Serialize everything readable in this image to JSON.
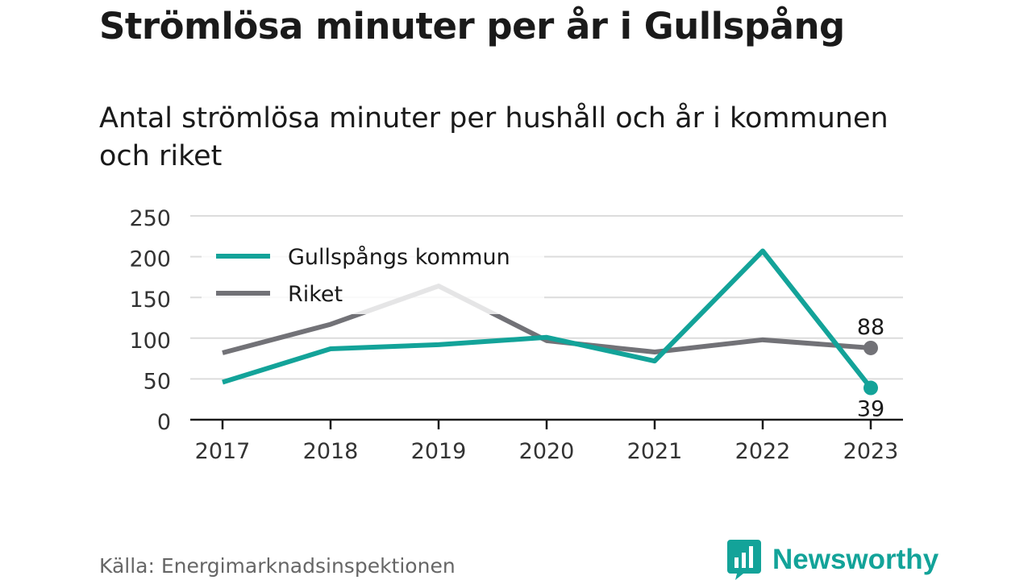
{
  "chart_data": {
    "type": "line",
    "title": "Strömlösa minuter per år i Gullspång",
    "subtitle": "Antal strömlösa minuter per hushåll och år i kommunen och riket",
    "x": [
      "2017",
      "2018",
      "2019",
      "2020",
      "2021",
      "2022",
      "2023"
    ],
    "ylim": [
      0,
      250
    ],
    "yticks": [
      "0",
      "50",
      "100",
      "150",
      "200",
      "250"
    ],
    "grid": true,
    "legend_position": "top-left",
    "series": [
      {
        "name": "Gullspångs kommun",
        "color": "#13a399",
        "values": [
          46,
          87,
          92,
          101,
          72,
          207,
          39
        ],
        "end_label": "39"
      },
      {
        "name": "Riket",
        "color": "#727277",
        "values": [
          82,
          117,
          164,
          97,
          83,
          98,
          88
        ],
        "end_label": "88"
      }
    ]
  },
  "footer": {
    "source": "Källa: Energimarknadsinspektionen",
    "brand": "Newsworthy",
    "brand_color": "#13a399"
  }
}
